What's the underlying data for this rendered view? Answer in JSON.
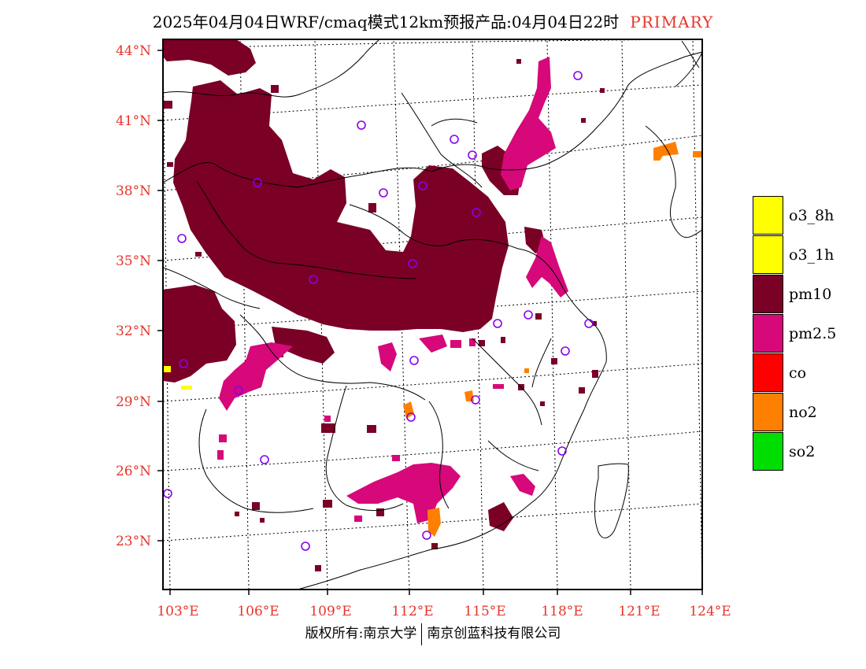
{
  "title": {
    "main": "2025年04月04日WRF/cmaq模式12km预报产品:04月04日22时",
    "tag": "PRIMARY"
  },
  "axes": {
    "lat_labels": [
      "44°N",
      "41°N",
      "38°N",
      "35°N",
      "32°N",
      "29°N",
      "26°N",
      "23°N"
    ],
    "lon_labels": [
      "103°E",
      "106°E",
      "109°E",
      "112°E",
      "115°E",
      "118°E",
      "121°E",
      "124°E"
    ]
  },
  "legend": [
    {
      "label": "o3_8h",
      "color": "#ffff00"
    },
    {
      "label": "o3_1h",
      "color": "#ffff00"
    },
    {
      "label": "pm10",
      "color": "#7a0026"
    },
    {
      "label": "pm2.5",
      "color": "#d6087a"
    },
    {
      "label": "co",
      "color": "#ff0000"
    },
    {
      "label": "no2",
      "color": "#ff7f00"
    },
    {
      "label": "so2",
      "color": "#00dd00"
    }
  ],
  "copyright": {
    "left": "版权所有:南京大学",
    "right": "南京创蓝科技有限公司"
  }
}
